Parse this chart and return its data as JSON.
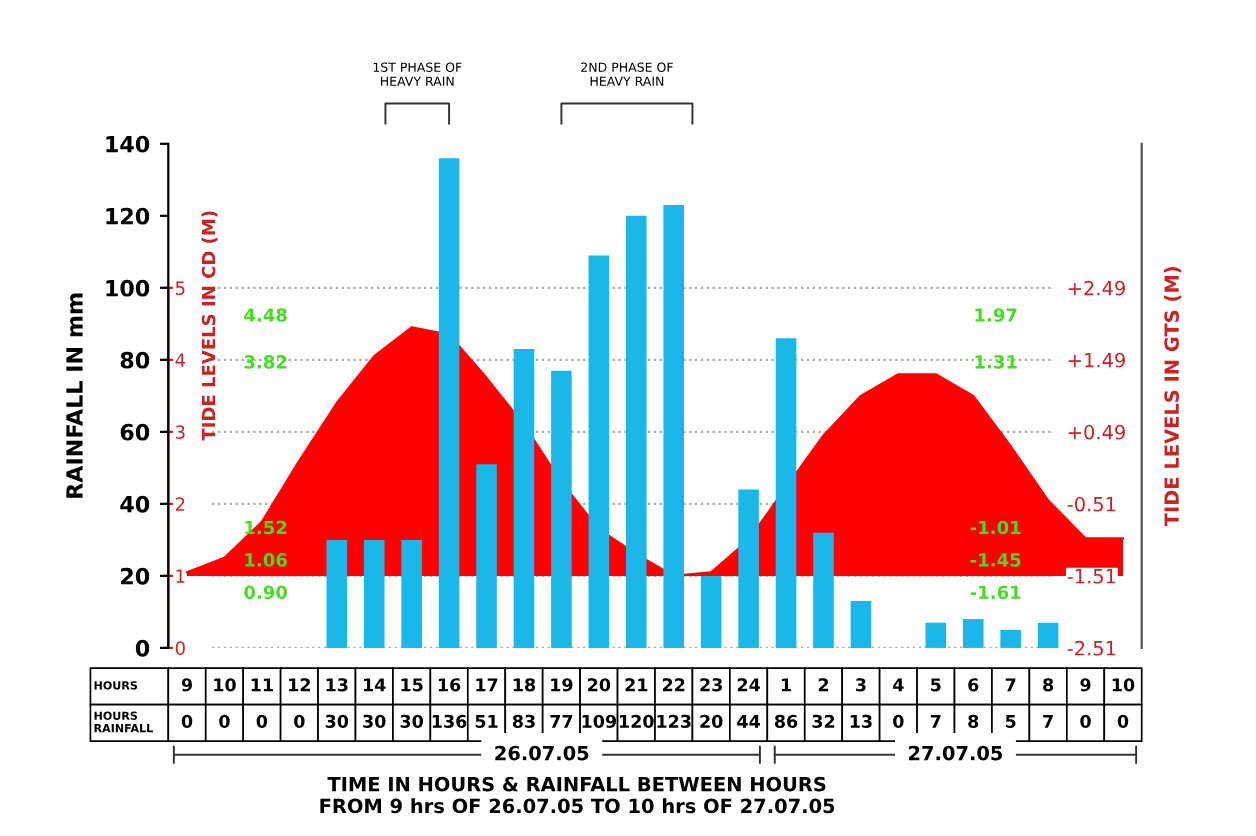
{
  "chart_data": {
    "type": "bar",
    "categories": [
      "9",
      "10",
      "11",
      "12",
      "13",
      "14",
      "15",
      "16",
      "17",
      "18",
      "19",
      "20",
      "21",
      "22",
      "23",
      "24",
      "1",
      "2",
      "3",
      "4",
      "5",
      "6",
      "7",
      "8",
      "9",
      "10"
    ],
    "series": [
      {
        "color": "#1ab8e8",
        "values": [
          0,
          0,
          0,
          0,
          30,
          30,
          30,
          136,
          51,
          83,
          77,
          109,
          120,
          123,
          20,
          44,
          86,
          32,
          13,
          0,
          7,
          8,
          5,
          7,
          0,
          0
        ],
        "value_labels": [
          "0",
          "0",
          "0",
          "0",
          "30",
          "30",
          "30",
          "136",
          "51",
          "83",
          "77",
          "109",
          "120",
          "123",
          "20",
          "44",
          "86",
          "32",
          "13",
          "0",
          "7",
          "8",
          "5",
          "7",
          "0",
          "0"
        ]
      },
      {
        "type": "area",
        "axis": "y2",
        "color": "#ff0000",
        "values": [
          1.05,
          1.25,
          1.75,
          2.6,
          3.4,
          4.05,
          4.45,
          4.35,
          3.75,
          3.1,
          2.3,
          1.65,
          1.3,
          1.0,
          1.05,
          1.5,
          2.23,
          2.95,
          3.5,
          3.8,
          3.8,
          3.5,
          2.8,
          2.05,
          1.52,
          1.52
        ]
      }
    ],
    "ylabel": "RAINFALL IN mm",
    "y2label": "TIDE LEVELS IN CD (M)",
    "y3label": "TIDE LEVELS IN GTS (M)",
    "xlabel": "TIME IN HOURS & RAINFALL BETWEEN HOURS\nFROM 9 hrs OF 26.07.05 TO 10 hrs OF 27.07.05",
    "ylim": [
      0,
      140
    ],
    "yticks": [
      0,
      20,
      40,
      60,
      80,
      100,
      120,
      140
    ],
    "y2lim": [
      0,
      7
    ],
    "y2ticks": [
      0,
      1,
      2,
      3,
      4,
      5
    ],
    "y3lim": [
      -2.51,
      4.49
    ],
    "y3ticks": [
      {
        "value": -2.51,
        "label": "-2.51"
      },
      {
        "value": -1.51,
        "label": "-1.51"
      },
      {
        "value": -0.51,
        "label": "-0.51"
      },
      {
        "value": 0.49,
        "label": "+0.49"
      },
      {
        "value": 1.49,
        "label": "+1.49"
      },
      {
        "value": 2.49,
        "label": "+2.49"
      }
    ],
    "grid": "y",
    "annotations": [
      "1ST PHASE OF\nHEAVY RAIN",
      "2ND PHASE OF\nHEAVY RAIN",
      "HOURS",
      "HOURS\nRAINFALL",
      "26.07.05",
      "27.07.05",
      "4.48",
      "3.82",
      "1.52",
      "1.06",
      "0.90",
      "1.97",
      "1.31",
      "-1.01",
      "-1.45",
      "-1.61"
    ]
  }
}
